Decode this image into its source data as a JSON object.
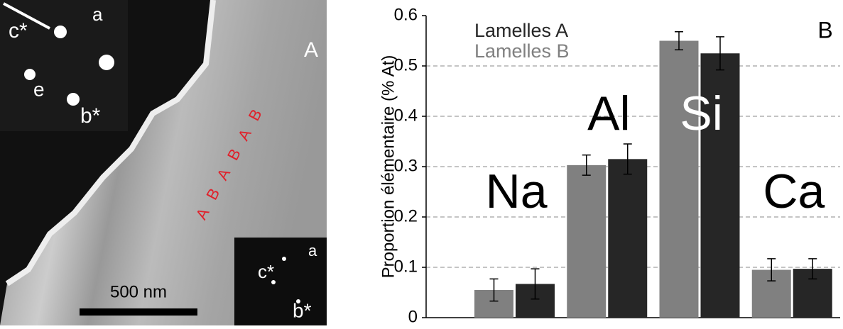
{
  "image_panel": {
    "panel_label": "A",
    "lamellae_labels": "A B A B A B",
    "scale_bar": "500 nm",
    "inset_top": {
      "c_star": "c*",
      "a": "a",
      "e": "e",
      "b_star": "b*"
    },
    "inset_bottom": {
      "c_star": "c*",
      "a": "a",
      "b_star": "b*"
    }
  },
  "chart_data": {
    "type": "bar",
    "panel_label": "B",
    "y_label": "Proportion élémentaire (% At)",
    "categories": [
      "Na",
      "Al",
      "Si",
      "Ca"
    ],
    "series": [
      {
        "name": "Lamelles A",
        "color": "#262626",
        "values": [
          0.067,
          0.315,
          0.525,
          0.097
        ],
        "errors": [
          0.03,
          0.03,
          0.033,
          0.02
        ]
      },
      {
        "name": "Lamelles B",
        "color": "#808080",
        "values": [
          0.055,
          0.303,
          0.55,
          0.095
        ],
        "errors": [
          0.022,
          0.02,
          0.018,
          0.022
        ]
      }
    ],
    "ylim": [
      0,
      0.6
    ],
    "yticks": [
      0,
      0.1,
      0.2,
      0.3,
      0.4,
      0.5,
      0.6
    ],
    "grid": true
  }
}
